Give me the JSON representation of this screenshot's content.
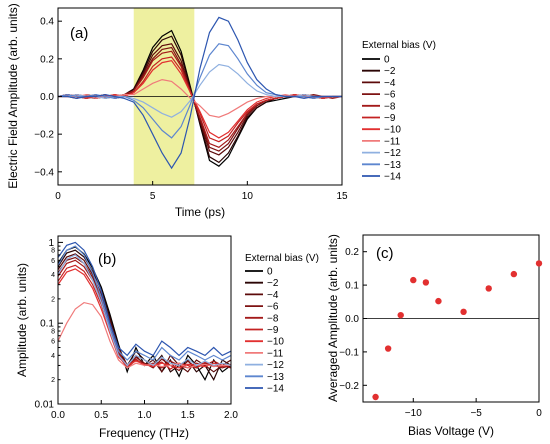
{
  "legend_title": "External bias (V)",
  "chart_data": [
    {
      "panel": "(a)",
      "type": "line",
      "xlabel": "Time (ps)",
      "ylabel": "Electric Field Amplitude (arb. units)",
      "xlim": [
        0,
        15
      ],
      "ylim": [
        -0.47,
        0.47
      ],
      "xticks": [
        "0",
        "5",
        "10",
        "15"
      ],
      "yticks": [
        "-0.4",
        "-0.2",
        "0.0",
        "0.2",
        "0.4"
      ],
      "highlight_range": [
        4.0,
        7.2
      ],
      "highlight_color": "#eef0a0",
      "zero_line": true,
      "legend_position": "right",
      "x": [
        0,
        0.5,
        1,
        1.5,
        2,
        2.5,
        3,
        3.5,
        4,
        4.5,
        5,
        5.5,
        6,
        6.5,
        7,
        7.5,
        8,
        8.5,
        9,
        9.5,
        10,
        10.5,
        11,
        11.5,
        12,
        12.5,
        13,
        13.5,
        14,
        14.5,
        15
      ],
      "series": [
        {
          "name": "0",
          "color": "#000000",
          "values": [
            0,
            0.01,
            0,
            -0.01,
            0,
            0.01,
            -0.01,
            0,
            0.04,
            0.14,
            0.26,
            0.32,
            0.35,
            0.24,
            0.05,
            -0.15,
            -0.34,
            -0.37,
            -0.32,
            -0.22,
            -0.12,
            -0.06,
            -0.03,
            -0.02,
            -0.01,
            0,
            0.01,
            0,
            -0.01,
            0,
            0
          ]
        },
        {
          "name": "−2",
          "color": "#2b0505",
          "values": [
            0,
            0,
            0.01,
            0,
            -0.01,
            0,
            0,
            0.01,
            0.04,
            0.13,
            0.24,
            0.3,
            0.32,
            0.22,
            0.04,
            -0.14,
            -0.32,
            -0.35,
            -0.3,
            -0.21,
            -0.11,
            -0.06,
            -0.03,
            -0.01,
            0,
            0.01,
            0,
            -0.01,
            0,
            0,
            0
          ]
        },
        {
          "name": "−4",
          "color": "#5c0a0a",
          "values": [
            0,
            0.01,
            0,
            0,
            0.01,
            -0.01,
            0,
            0,
            0.03,
            0.12,
            0.22,
            0.27,
            0.28,
            0.19,
            0.03,
            -0.13,
            -0.29,
            -0.31,
            -0.27,
            -0.19,
            -0.1,
            -0.05,
            -0.02,
            -0.01,
            0,
            0,
            0.01,
            0,
            -0.01,
            0,
            0
          ]
        },
        {
          "name": "−6",
          "color": "#7e1212",
          "values": [
            0,
            0,
            -0.01,
            0.01,
            0,
            0,
            0.01,
            0,
            0.03,
            0.11,
            0.2,
            0.25,
            0.26,
            0.17,
            0.03,
            -0.12,
            -0.27,
            -0.29,
            -0.25,
            -0.17,
            -0.09,
            -0.05,
            -0.02,
            -0.01,
            0,
            0,
            0,
            0.01,
            0,
            0,
            0
          ]
        },
        {
          "name": "−8",
          "color": "#a31a1a",
          "values": [
            0,
            0.01,
            0,
            0,
            -0.01,
            0,
            0,
            0.01,
            0.03,
            0.1,
            0.19,
            0.23,
            0.24,
            0.16,
            0.02,
            -0.11,
            -0.25,
            -0.27,
            -0.23,
            -0.16,
            -0.09,
            -0.04,
            -0.02,
            -0.01,
            0,
            0.01,
            0,
            0,
            0,
            -0.01,
            0
          ]
        },
        {
          "name": "−9",
          "color": "#c42222",
          "values": [
            0,
            0,
            0.01,
            0,
            0,
            0.01,
            -0.01,
            0,
            0.02,
            0.08,
            0.16,
            0.2,
            0.21,
            0.14,
            0.02,
            -0.09,
            -0.22,
            -0.24,
            -0.21,
            -0.14,
            -0.08,
            -0.04,
            -0.02,
            -0.01,
            0,
            0,
            0.01,
            0,
            0,
            0,
            0
          ]
        },
        {
          "name": "−10",
          "color": "#e23030",
          "values": [
            0,
            0.01,
            0,
            -0.01,
            0,
            0,
            0.01,
            0,
            0.02,
            0.07,
            0.14,
            0.18,
            0.19,
            0.12,
            0.02,
            -0.08,
            -0.19,
            -0.22,
            -0.19,
            -0.13,
            -0.07,
            -0.03,
            -0.01,
            0,
            0,
            0.01,
            0,
            0,
            -0.01,
            0,
            0
          ]
        },
        {
          "name": "−11",
          "color": "#f07a7a",
          "values": [
            0,
            0,
            0,
            0.01,
            -0.01,
            0,
            0,
            0.01,
            0.01,
            0.04,
            0.07,
            0.09,
            0.08,
            0.04,
            -0.01,
            -0.05,
            -0.1,
            -0.11,
            -0.09,
            -0.06,
            -0.03,
            -0.01,
            0,
            0,
            0.01,
            0,
            0,
            0,
            0,
            0,
            0
          ]
        },
        {
          "name": "−12",
          "color": "#8fb0e0",
          "values": [
            0,
            0,
            0.01,
            0,
            0,
            -0.01,
            0,
            0,
            -0.01,
            -0.03,
            -0.06,
            -0.09,
            -0.11,
            -0.08,
            -0.02,
            0.06,
            0.13,
            0.17,
            0.16,
            0.12,
            0.07,
            0.03,
            0.01,
            0,
            0,
            0,
            0.01,
            0,
            0,
            0,
            0
          ]
        },
        {
          "name": "−13",
          "color": "#5d86cf",
          "values": [
            0,
            0.01,
            0,
            0,
            0.01,
            0,
            -0.01,
            0,
            -0.02,
            -0.06,
            -0.12,
            -0.18,
            -0.22,
            -0.16,
            -0.04,
            0.1,
            0.22,
            0.28,
            0.27,
            0.2,
            0.12,
            0.06,
            0.02,
            0.01,
            0,
            0,
            0,
            -0.01,
            0,
            0,
            0
          ]
        },
        {
          "name": "−14",
          "color": "#2d56b0",
          "values": [
            0,
            0,
            -0.01,
            0,
            0,
            0.01,
            0,
            -0.01,
            -0.03,
            -0.1,
            -0.2,
            -0.3,
            -0.38,
            -0.3,
            -0.1,
            0.15,
            0.34,
            0.42,
            0.4,
            0.3,
            0.18,
            0.09,
            0.04,
            0.01,
            0,
            0,
            -0.01,
            0,
            0,
            0,
            0
          ]
        }
      ]
    },
    {
      "panel": "(b)",
      "type": "line",
      "xlabel": "Frequency (THz)",
      "ylabel": "Amplitude (arb. units)",
      "xlim": [
        0.0,
        2.0
      ],
      "ylim": [
        0.01,
        1.2
      ],
      "yscale": "log",
      "xticks": [
        "0.0",
        "0.5",
        "1.0",
        "1.5",
        "2.0"
      ],
      "yticks": [
        "0.01",
        "0.1",
        "1"
      ],
      "legend_position": "right",
      "x": [
        0.0,
        0.1,
        0.2,
        0.3,
        0.4,
        0.5,
        0.6,
        0.7,
        0.8,
        0.9,
        1.0,
        1.1,
        1.2,
        1.3,
        1.4,
        1.5,
        1.6,
        1.7,
        1.8,
        1.9,
        2.0
      ],
      "series": [
        {
          "name": "0",
          "color": "#000000",
          "values": [
            0.55,
            0.8,
            0.88,
            0.72,
            0.48,
            0.28,
            0.13,
            0.055,
            0.025,
            0.05,
            0.03,
            0.04,
            0.025,
            0.035,
            0.022,
            0.04,
            0.03,
            0.02,
            0.035,
            0.025,
            0.03
          ]
        },
        {
          "name": "−2",
          "color": "#2b0505",
          "values": [
            0.5,
            0.74,
            0.8,
            0.66,
            0.44,
            0.26,
            0.12,
            0.05,
            0.03,
            0.045,
            0.035,
            0.03,
            0.04,
            0.025,
            0.03,
            0.035,
            0.025,
            0.03,
            0.02,
            0.035,
            0.03
          ]
        },
        {
          "name": "−4",
          "color": "#5c0a0a",
          "values": [
            0.46,
            0.66,
            0.72,
            0.6,
            0.4,
            0.23,
            0.11,
            0.05,
            0.03,
            0.04,
            0.03,
            0.035,
            0.025,
            0.04,
            0.03,
            0.025,
            0.035,
            0.03,
            0.025,
            0.03,
            0.035
          ]
        },
        {
          "name": "−6",
          "color": "#7e1212",
          "values": [
            0.42,
            0.6,
            0.65,
            0.55,
            0.37,
            0.21,
            0.1,
            0.045,
            0.028,
            0.038,
            0.032,
            0.028,
            0.036,
            0.03,
            0.026,
            0.034,
            0.028,
            0.032,
            0.03,
            0.028,
            0.03
          ]
        },
        {
          "name": "−8",
          "color": "#a31a1a",
          "values": [
            0.38,
            0.55,
            0.6,
            0.5,
            0.34,
            0.19,
            0.09,
            0.042,
            0.03,
            0.036,
            0.03,
            0.032,
            0.028,
            0.034,
            0.03,
            0.028,
            0.032,
            0.03,
            0.034,
            0.03,
            0.028
          ]
        },
        {
          "name": "−9",
          "color": "#c42222",
          "values": [
            0.33,
            0.48,
            0.52,
            0.44,
            0.3,
            0.17,
            0.08,
            0.04,
            0.028,
            0.035,
            0.03,
            0.03,
            0.033,
            0.027,
            0.032,
            0.03,
            0.028,
            0.033,
            0.03,
            0.029,
            0.031
          ]
        },
        {
          "name": "−10",
          "color": "#e23030",
          "values": [
            0.3,
            0.43,
            0.47,
            0.4,
            0.27,
            0.15,
            0.075,
            0.038,
            0.03,
            0.034,
            0.031,
            0.029,
            0.032,
            0.03,
            0.028,
            0.031,
            0.03,
            0.029,
            0.032,
            0.03,
            0.03
          ]
        },
        {
          "name": "−11",
          "color": "#f07a7a",
          "values": [
            0.06,
            0.1,
            0.15,
            0.18,
            0.17,
            0.12,
            0.06,
            0.035,
            0.028,
            0.032,
            0.03,
            0.031,
            0.029,
            0.03,
            0.032,
            0.028,
            0.03,
            0.031,
            0.029,
            0.03,
            0.03
          ]
        },
        {
          "name": "−12",
          "color": "#8fb0e0",
          "values": [
            0.4,
            0.62,
            0.7,
            0.55,
            0.34,
            0.18,
            0.08,
            0.04,
            0.03,
            0.04,
            0.035,
            0.03,
            0.038,
            0.032,
            0.03,
            0.036,
            0.03,
            0.034,
            0.03,
            0.032,
            0.03
          ]
        },
        {
          "name": "−13",
          "color": "#5d86cf",
          "values": [
            0.52,
            0.8,
            0.9,
            0.7,
            0.42,
            0.21,
            0.09,
            0.045,
            0.035,
            0.045,
            0.04,
            0.035,
            0.05,
            0.04,
            0.035,
            0.045,
            0.04,
            0.035,
            0.04,
            0.035,
            0.04
          ]
        },
        {
          "name": "−14",
          "color": "#2d56b0",
          "values": [
            0.65,
            0.92,
            1.0,
            0.8,
            0.5,
            0.25,
            0.1,
            0.05,
            0.04,
            0.055,
            0.045,
            0.04,
            0.06,
            0.05,
            0.04,
            0.05,
            0.045,
            0.04,
            0.05,
            0.04,
            0.045
          ]
        }
      ]
    },
    {
      "panel": "(c)",
      "type": "scatter",
      "xlabel": "Bias Voltage (V)",
      "ylabel": "Averaged Amplitude (arb. units)",
      "xlim": [
        -14,
        0
      ],
      "ylim": [
        -0.25,
        0.25
      ],
      "xticks": [
        "-10",
        "-5",
        "0"
      ],
      "yticks": [
        "-0.2",
        "-0.1",
        "0.0",
        "0.1",
        "0.2"
      ],
      "zero_line": true,
      "marker_color": "#e23030",
      "points": [
        {
          "x": -13,
          "y": -0.235
        },
        {
          "x": -12,
          "y": -0.09
        },
        {
          "x": -11,
          "y": 0.01
        },
        {
          "x": -10,
          "y": 0.115
        },
        {
          "x": -9,
          "y": 0.108
        },
        {
          "x": -8,
          "y": 0.052
        },
        {
          "x": -6,
          "y": 0.02
        },
        {
          "x": -4,
          "y": 0.09
        },
        {
          "x": -2,
          "y": 0.133
        },
        {
          "x": 0,
          "y": 0.165
        }
      ]
    }
  ]
}
